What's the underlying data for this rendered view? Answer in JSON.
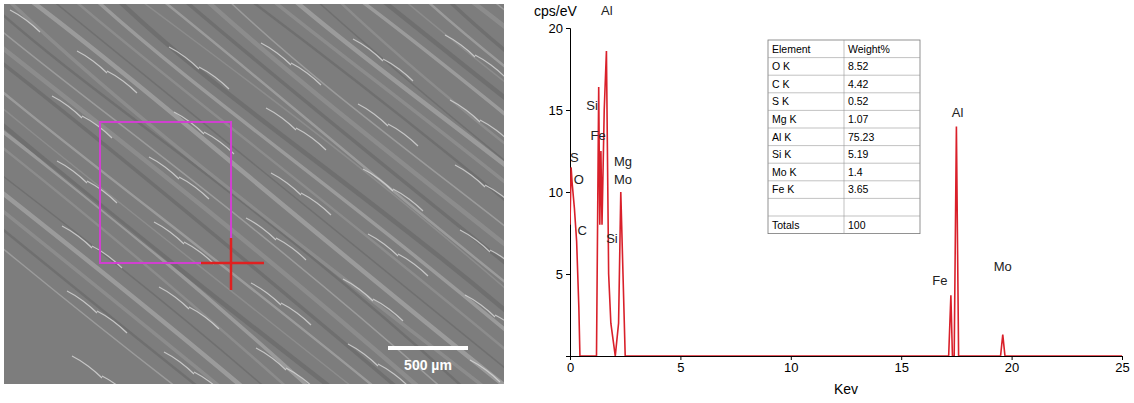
{
  "chart_data": {
    "type": "line",
    "y_label": "cps/eV",
    "x_label": "Kev",
    "x": [
      0,
      0.05,
      0.1,
      0.2,
      0.3,
      0.4,
      0.45,
      1.2,
      1.3,
      1.35,
      1.4,
      1.45,
      1.55,
      1.65,
      1.75,
      1.85,
      1.95,
      2.05,
      2.2,
      2.3,
      2.4,
      2.5,
      17.15,
      17.25,
      17.32,
      17.4,
      17.5,
      17.6,
      19.5,
      19.6,
      19.7,
      25
    ],
    "series": [
      {
        "color": "#d9202a",
        "values": [
          8,
          11.5,
          10.5,
          9,
          7,
          3,
          0,
          0,
          16.4,
          8,
          12.5,
          8,
          15,
          18.6,
          5,
          2,
          1,
          0,
          2,
          10,
          5,
          0,
          0,
          3.7,
          0,
          0,
          14,
          0,
          0,
          1.3,
          0,
          0
        ]
      }
    ],
    "xlim": [
      0,
      25
    ],
    "xticks": [
      0,
      5,
      10,
      15,
      20,
      25
    ],
    "ylim": [
      0,
      20
    ],
    "yticks": [
      5,
      10,
      15,
      20
    ],
    "annotations": [
      {
        "text": "Al",
        "x": 1.67,
        "y": 20.8
      },
      {
        "text": "Si",
        "x": 1.0,
        "y": 15.0
      },
      {
        "text": "Fe",
        "x": 1.27,
        "y": 13.2
      },
      {
        "text": "S",
        "x": 0.2,
        "y": 11.8
      },
      {
        "text": "O",
        "x": 0.4,
        "y": 10.5
      },
      {
        "text": "Mg",
        "x": 2.4,
        "y": 11.6
      },
      {
        "text": "Mo",
        "x": 2.4,
        "y": 10.5
      },
      {
        "text": "C",
        "x": 0.55,
        "y": 7.4
      },
      {
        "text": "Si",
        "x": 1.9,
        "y": 6.9
      },
      {
        "text": "Al",
        "x": 17.55,
        "y": 14.6
      },
      {
        "text": "Fe",
        "x": 16.75,
        "y": 4.3
      },
      {
        "text": "Mo",
        "x": 19.6,
        "y": 5.2
      }
    ],
    "table": {
      "header": [
        "Element",
        "Weight%"
      ],
      "rows": [
        [
          "O K",
          8.52
        ],
        [
          "C K",
          4.42
        ],
        [
          "S K",
          0.52
        ],
        [
          "Mg K",
          1.07
        ],
        [
          "Al K",
          75.23
        ],
        [
          "Si K",
          5.19
        ],
        [
          "Mo K",
          1.4
        ],
        [
          "Fe K",
          3.65
        ]
      ],
      "total": [
        "Totals",
        100
      ]
    },
    "image": {
      "scale_bar_label": "500 µm"
    }
  }
}
